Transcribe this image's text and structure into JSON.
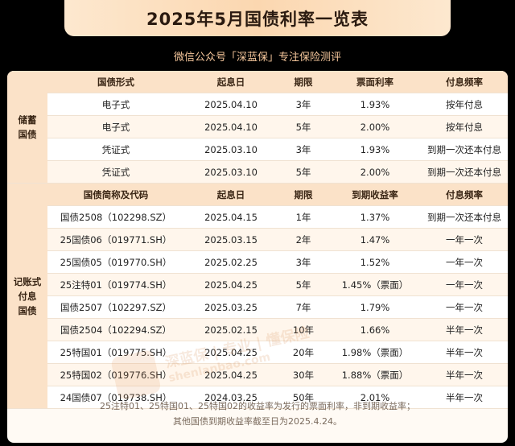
{
  "header": {
    "title": "2025年5月国债利率一览表",
    "subtitle": "微信公众号「深蓝保」专注保险测评"
  },
  "savings": {
    "group_label_1": "储蓄",
    "group_label_2": "国债",
    "headers": [
      "国债形式",
      "起息日",
      "期限",
      "票面利率",
      "付息频率"
    ],
    "rows": [
      [
        "电子式",
        "2025.04.10",
        "3年",
        "1.93%",
        "按年付息"
      ],
      [
        "电子式",
        "2025.04.10",
        "5年",
        "2.00%",
        "按年付息"
      ],
      [
        "凭证式",
        "2025.03.10",
        "3年",
        "1.93%",
        "到期一次还本付息"
      ],
      [
        "凭证式",
        "2025.03.10",
        "5年",
        "2.00%",
        "到期一次还本付息"
      ]
    ]
  },
  "book": {
    "group_label_1": "记账式",
    "group_label_2": "付息",
    "group_label_3": "国债",
    "headers": [
      "国债简称及代码",
      "起息日",
      "期限",
      "到期收益率",
      "付息频率"
    ],
    "rows": [
      [
        "国债2508（102298.SZ）",
        "2025.04.15",
        "1年",
        "1.37%",
        "到期一次还本付息"
      ],
      [
        "25国债06（019771.SH）",
        "2025.03.15",
        "2年",
        "1.47%",
        "一年一次"
      ],
      [
        "25国债05（019770.SH）",
        "2025.02.25",
        "3年",
        "1.52%",
        "一年一次"
      ],
      [
        "25注特01（019774.SH）",
        "2025.04.25",
        "5年",
        "1.45%（票面）",
        "一年一次"
      ],
      [
        "国债2507（102297.SZ）",
        "2025.03.25",
        "7年",
        "1.79%",
        "一年一次"
      ],
      [
        "国债2504（102294.SZ）",
        "2025.02.15",
        "10年",
        "1.66%",
        "半年一次"
      ],
      [
        "25特国01（019775.SH）",
        "2025.04.25",
        "20年",
        "1.98%（票面）",
        "半年一次"
      ],
      [
        "25特国02（019776.SH）",
        "2025.04.25",
        "30年",
        "1.88%（票面）",
        "半年一次"
      ],
      [
        "24国债07（019738.SH）",
        "2024.03.25",
        "50年",
        "2.01%",
        "半年一次"
      ]
    ]
  },
  "notes": {
    "line1": "25注特01、25特国01、25特国02的收益率为发行的票面利率，非到期收益率；",
    "line2": "其他国债到期收益率截至日为2025.4.24。"
  },
  "watermark": {
    "text": "深蓝保 | 专业 | 懂保险",
    "url": "shenlanbao.com"
  },
  "colors": {
    "page_bg": "#000000",
    "header_bg": "#fbe2c8",
    "title_bg": "#fbd7b0",
    "subtitle_text": "#f6c79c"
  }
}
